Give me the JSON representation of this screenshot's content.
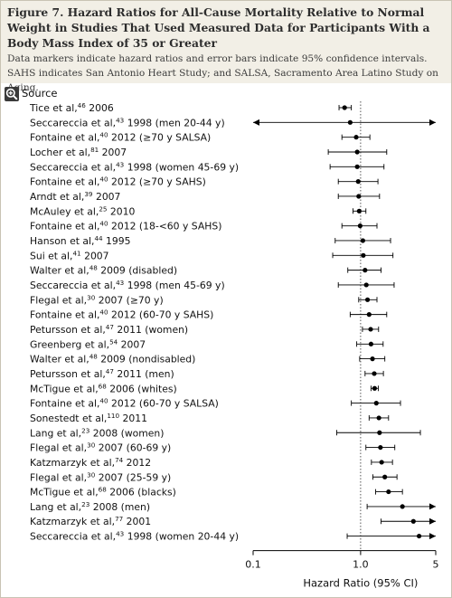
{
  "figure": {
    "title": "Figure 7. Hazard Ratios for All-Cause Mortality Relative to Normal Weight in Studies That Used Measured Data for Participants With a Body Mass Index of 35 or Greater",
    "caption": "Data markers indicate hazard ratios and error bars indicate 95% confidence intervals. SAHS indicates San Antonio Heart Study; and SALSA, Sacramento Area Latino Study on Aging.",
    "zoom_icon": "magnifier-plus-icon"
  },
  "colors": {
    "caption_bg": "#f2efe6",
    "marker": "#000000",
    "reference_line": "#555555",
    "axis": "#000000"
  },
  "chart_data": {
    "type": "forest",
    "column_header": "Source",
    "xlabel": "Hazard Ratio (95% CI)",
    "x_scale": "log",
    "xlim": [
      0.1,
      5
    ],
    "x_ticks": [
      0.1,
      1.0,
      5
    ],
    "x_tick_labels": [
      "0.1",
      "1.0",
      "5"
    ],
    "reference_line": 1.0,
    "studies": [
      {
        "author": "Tice et al,",
        "ref": "46",
        "detail": " 2006",
        "hr": 0.71,
        "lo": 0.63,
        "hi": 0.82
      },
      {
        "author": "Seccareccia et al,",
        "ref": "43",
        "detail": " 1998 (men 20-44 y)",
        "hr": 0.8,
        "lo": 0.1,
        "hi": 5.0,
        "lo_arrow": true,
        "hi_arrow": true
      },
      {
        "author": "Fontaine et al,",
        "ref": "40",
        "detail": " 2012 (≥70 y SALSA)",
        "hr": 0.91,
        "lo": 0.67,
        "hi": 1.22
      },
      {
        "author": "Locher et al,",
        "ref": "81",
        "detail": " 2007",
        "hr": 0.93,
        "lo": 0.5,
        "hi": 1.75
      },
      {
        "author": "Seccareccia et al,",
        "ref": "43",
        "detail": " 1998 (women 45-69 y)",
        "hr": 0.93,
        "lo": 0.52,
        "hi": 1.65
      },
      {
        "author": "Fontaine et al,",
        "ref": "40",
        "detail": " 2012 (≥70 y SAHS)",
        "hr": 0.95,
        "lo": 0.62,
        "hi": 1.45
      },
      {
        "author": "Arndt et al,",
        "ref": "39",
        "detail": " 2007",
        "hr": 0.96,
        "lo": 0.62,
        "hi": 1.5
      },
      {
        "author": "McAuley et al,",
        "ref": "25",
        "detail": " 2010",
        "hr": 0.97,
        "lo": 0.85,
        "hi": 1.12
      },
      {
        "author": "Fontaine et al,",
        "ref": "40",
        "detail": " 2012 (18-<60 y SAHS)",
        "hr": 0.99,
        "lo": 0.67,
        "hi": 1.42
      },
      {
        "author": "Hanson et al,",
        "ref": "44",
        "detail": " 1995",
        "hr": 1.05,
        "lo": 0.58,
        "hi": 1.9
      },
      {
        "author": "Sui et al,",
        "ref": "41",
        "detail": " 2007",
        "hr": 1.06,
        "lo": 0.55,
        "hi": 2.0
      },
      {
        "author": "Walter et al,",
        "ref": "48",
        "detail": " 2009 (disabled)",
        "hr": 1.1,
        "lo": 0.76,
        "hi": 1.55
      },
      {
        "author": "Seccareccia et al,",
        "ref": "43",
        "detail": " 1998 (men 45-69 y)",
        "hr": 1.13,
        "lo": 0.62,
        "hi": 2.05
      },
      {
        "author": "Flegal et al,",
        "ref": "30",
        "detail": " 2007 (≥70 y)",
        "hr": 1.16,
        "lo": 0.96,
        "hi": 1.42
      },
      {
        "author": "Fontaine et al,",
        "ref": "40",
        "detail": " 2012 (60-70 y SAHS)",
        "hr": 1.2,
        "lo": 0.8,
        "hi": 1.75
      },
      {
        "author": "Petursson et al,",
        "ref": "47",
        "detail": " 2011 (women)",
        "hr": 1.24,
        "lo": 1.04,
        "hi": 1.47
      },
      {
        "author": "Greenberg et al,",
        "ref": "54",
        "detail": " 2007",
        "hr": 1.25,
        "lo": 0.92,
        "hi": 1.62
      },
      {
        "author": "Walter et al,",
        "ref": "48",
        "detail": " 2009 (nondisabled)",
        "hr": 1.29,
        "lo": 0.98,
        "hi": 1.68
      },
      {
        "author": "Petursson et al,",
        "ref": "47",
        "detail": " 2011 (men)",
        "hr": 1.34,
        "lo": 1.1,
        "hi": 1.63
      },
      {
        "author": "McTigue et al,",
        "ref": "68",
        "detail": " 2006 (whites)",
        "hr": 1.35,
        "lo": 1.25,
        "hi": 1.46
      },
      {
        "author": "Fontaine et al,",
        "ref": "40",
        "detail": " 2012 (60-70 y SALSA)",
        "hr": 1.4,
        "lo": 0.82,
        "hi": 2.35
      },
      {
        "author": "Sonestedt et al,",
        "ref": "110",
        "detail": " 2011",
        "hr": 1.48,
        "lo": 1.2,
        "hi": 1.82
      },
      {
        "author": "Lang et al,",
        "ref": "23",
        "detail": " 2008 (women)",
        "hr": 1.5,
        "lo": 0.6,
        "hi": 3.6
      },
      {
        "author": "Flegal et al,",
        "ref": "30",
        "detail": " 2007 (60-69 y)",
        "hr": 1.53,
        "lo": 1.12,
        "hi": 2.08
      },
      {
        "author": "Katzmarzyk et al,",
        "ref": "74",
        "detail": " 2012",
        "hr": 1.57,
        "lo": 1.26,
        "hi": 1.98
      },
      {
        "author": "Flegal et al,",
        "ref": "30",
        "detail": " 2007 (25-59 y)",
        "hr": 1.68,
        "lo": 1.3,
        "hi": 2.18
      },
      {
        "author": "McTigue et al,",
        "ref": "68",
        "detail": " 2006 (blacks)",
        "hr": 1.82,
        "lo": 1.38,
        "hi": 2.45
      },
      {
        "author": "Lang et al,",
        "ref": "23",
        "detail": " 2008 (men)",
        "hr": 2.45,
        "lo": 1.15,
        "hi": 5.0,
        "hi_arrow": true
      },
      {
        "author": "Katzmarzyk et al,",
        "ref": "77",
        "detail": " 2001",
        "hr": 3.1,
        "lo": 1.55,
        "hi": 5.0,
        "hi_arrow": true
      },
      {
        "author": "Seccareccia et al,",
        "ref": "43",
        "detail": " 1998 (women 20-44 y)",
        "hr": 3.5,
        "lo": 0.75,
        "hi": 5.0,
        "hi_arrow": true
      }
    ]
  }
}
